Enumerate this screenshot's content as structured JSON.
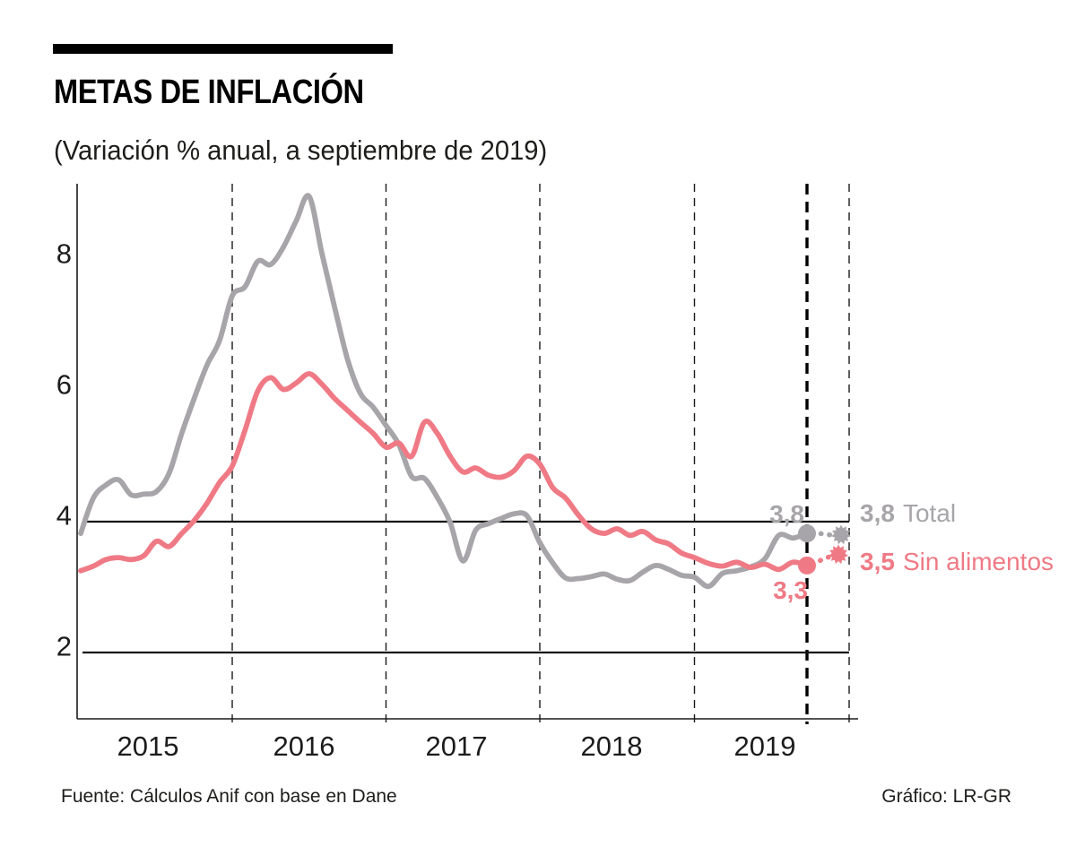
{
  "header": {
    "title": "METAS DE INFLACIÓN",
    "subtitle": "(Variación % anual, a septiembre de 2019)"
  },
  "footer": {
    "source": "Fuente: Cálculos Anif con base en Dane",
    "credit": "Gráfico: LR-GR"
  },
  "colors": {
    "total": "#a7a5a9",
    "core": "#ef7a85",
    "axis": "#1a1a1a",
    "target_line": "#111111",
    "background": "#ffffff"
  },
  "annotations": {
    "total_last_value": "3,8",
    "core_last_value": "3,3",
    "total_forecast_value": "3,8",
    "total_series_name": "Total",
    "core_forecast_value": "3,5",
    "core_series_name": "Sin alimentos"
  },
  "chart_data": {
    "type": "line",
    "title": "METAS DE INFLACIÓN",
    "subtitle": "(Variación % anual, a septiembre de 2019)",
    "x_unit": "month",
    "x_range": [
      "2015-01",
      "2019-09"
    ],
    "x_tick_labels": [
      "2015",
      "2016",
      "2017",
      "2018",
      "2019"
    ],
    "y_ticks": [
      8,
      6,
      4,
      2
    ],
    "ylim": [
      1,
      9.2
    ],
    "grid": "dashed vertical lines at each year start",
    "target_band": [
      2,
      4
    ],
    "cutoff_marker": "thick dashed vertical line at last actual data point (sep-2019)",
    "forecast_marker": "thin dashed vertical line at year-end forecast (dic-2019)",
    "legend_position": "right of plot at line ends",
    "series": [
      {
        "name": "Total",
        "color": "#a7a5a9",
        "last_value_label": "3,8",
        "forecast_value": 3.8,
        "forecast_label": "3,8",
        "values": [
          3.82,
          4.36,
          4.56,
          4.64,
          4.41,
          4.42,
          4.46,
          4.74,
          5.35,
          5.89,
          6.39,
          6.77,
          7.45,
          7.59,
          7.98,
          7.93,
          8.2,
          8.6,
          8.97,
          8.1,
          7.27,
          6.48,
          5.96,
          5.75,
          5.47,
          5.18,
          4.69,
          4.66,
          4.37,
          3.99,
          3.4,
          3.87,
          3.97,
          4.05,
          4.12,
          4.09,
          3.68,
          3.37,
          3.14,
          3.13,
          3.16,
          3.2,
          3.12,
          3.1,
          3.23,
          3.33,
          3.27,
          3.18,
          3.15,
          3.01,
          3.21,
          3.25,
          3.31,
          3.43,
          3.79,
          3.75,
          3.82
        ]
      },
      {
        "name": "Sin alimentos",
        "color": "#ef7a85",
        "last_value_label": "3,3",
        "forecast_value": 3.5,
        "forecast_label": "3,5",
        "values": [
          3.25,
          3.32,
          3.42,
          3.45,
          3.42,
          3.48,
          3.7,
          3.62,
          3.82,
          4.02,
          4.28,
          4.6,
          4.85,
          5.4,
          6.0,
          6.2,
          6.02,
          6.12,
          6.26,
          6.1,
          5.88,
          5.7,
          5.52,
          5.35,
          5.14,
          5.2,
          5.0,
          5.52,
          5.35,
          5.0,
          4.76,
          4.82,
          4.71,
          4.68,
          4.78,
          5.0,
          4.88,
          4.52,
          4.36,
          4.1,
          3.89,
          3.82,
          3.89,
          3.79,
          3.85,
          3.72,
          3.66,
          3.52,
          3.45,
          3.36,
          3.32,
          3.38,
          3.3,
          3.35,
          3.27,
          3.38,
          3.33
        ]
      }
    ]
  }
}
